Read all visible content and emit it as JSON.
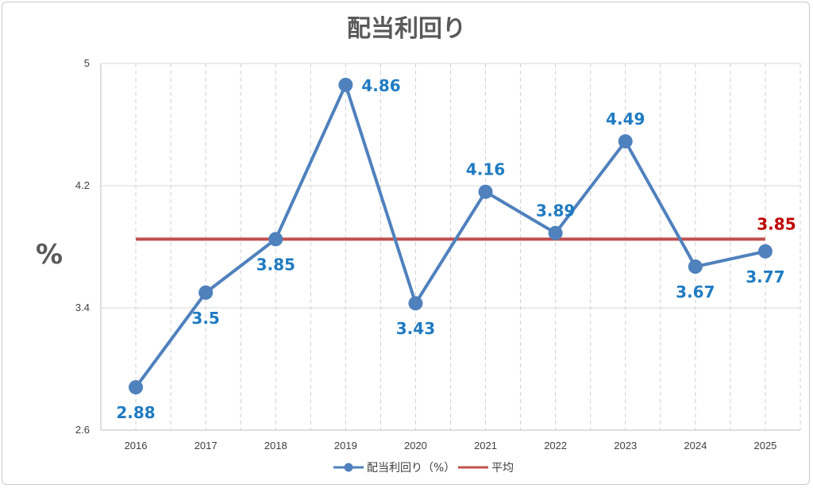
{
  "chart_data": {
    "type": "line",
    "title": "配当利回り",
    "ylabel": "%",
    "xlabel": "",
    "categories": [
      "2016",
      "2017",
      "2018",
      "2019",
      "2020",
      "2021",
      "2022",
      "2023",
      "2024",
      "2025"
    ],
    "ylim": [
      2.6,
      5
    ],
    "yticks": [
      "2.6",
      "3.4",
      "4.2",
      "5"
    ],
    "grid": true,
    "legend_position": "bottom",
    "series": [
      {
        "name": "配当利回り（%）",
        "values": [
          2.88,
          3.5,
          3.85,
          4.86,
          3.43,
          4.16,
          3.89,
          4.49,
          3.67,
          3.77
        ],
        "labels": [
          "2.88",
          "3.5",
          "3.85",
          "4.86",
          "3.43",
          "4.16",
          "3.89",
          "4.49",
          "3.67",
          "3.77"
        ],
        "color": "#4f81bd"
      },
      {
        "name": "平均",
        "values": [
          3.85,
          3.85,
          3.85,
          3.85,
          3.85,
          3.85,
          3.85,
          3.85,
          3.85,
          3.85
        ],
        "label": "3.85",
        "color": "#c0504d"
      }
    ]
  }
}
